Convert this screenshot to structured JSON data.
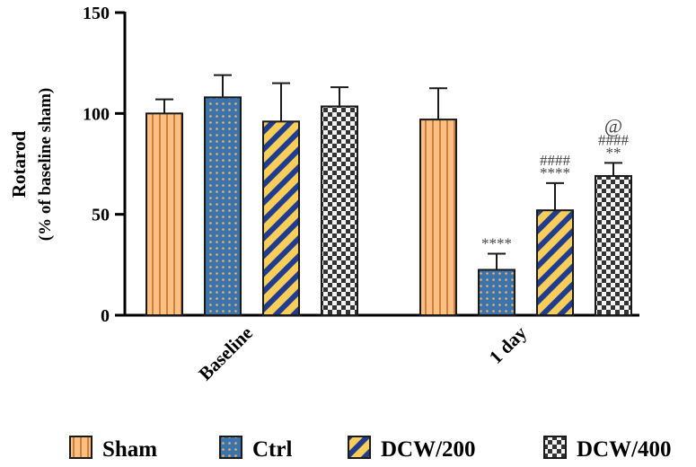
{
  "chart_data": {
    "type": "bar",
    "title": "",
    "ylabel": "Rotarod",
    "ylabel_sub": "(% of baseline sham)",
    "xlabel": "",
    "ylim": [
      0,
      150
    ],
    "yticks": [
      0,
      50,
      100,
      150
    ],
    "categories": [
      "Baseline",
      "1 day"
    ],
    "series": [
      {
        "name": "Sham",
        "values": [
          100,
          97
        ],
        "errors": [
          7,
          15.5
        ],
        "annotations": [
          "",
          ""
        ],
        "pattern": "vertical-stripes",
        "color": "#f9b97a"
      },
      {
        "name": "Ctrl",
        "values": [
          108,
          22.5
        ],
        "errors": [
          11,
          8
        ],
        "annotations": [
          "",
          "****"
        ],
        "pattern": "dots",
        "color": "#3d6fa6"
      },
      {
        "name": "DCW/200",
        "values": [
          96,
          52
        ],
        "errors": [
          19,
          13.5
        ],
        "annotations": [
          "",
          "####\n****"
        ],
        "pattern": "diagonal-stripes",
        "color": "#f6c24b"
      },
      {
        "name": "DCW/400",
        "values": [
          103.5,
          69
        ],
        "errors": [
          9.5,
          6.5
        ],
        "annotations": [
          "",
          "@\n####\n**"
        ],
        "pattern": "checker",
        "color": "#3a3a3a"
      }
    ],
    "legend_position": "bottom",
    "grid": false
  }
}
